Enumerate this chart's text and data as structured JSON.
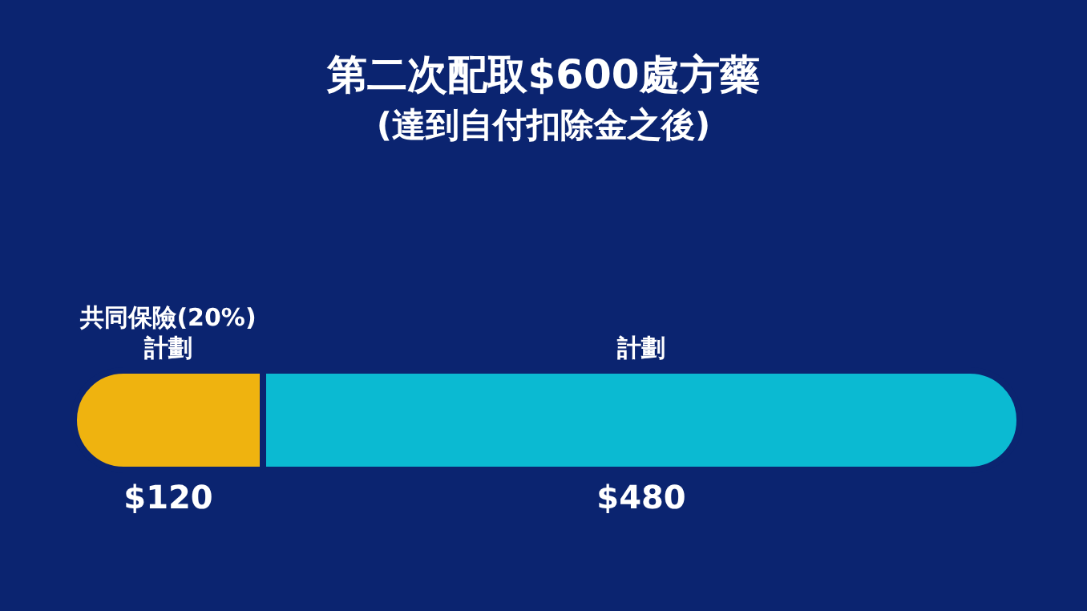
{
  "chart_data": {
    "type": "bar",
    "title": "第二次配取$600處方藥",
    "subtitle": "(達到自付扣除金之後)",
    "orientation": "horizontal",
    "stacked": true,
    "categories": [
      null
    ],
    "series": [
      {
        "name": "共同保險(20%)計劃",
        "color": "#efb30f",
        "values": [
          120
        ],
        "value_labels": [
          "$120"
        ]
      },
      {
        "name": "計劃",
        "color": "#0bbad2",
        "values": [
          480
        ],
        "value_labels": [
          "$480"
        ]
      }
    ],
    "legend": false
  }
}
